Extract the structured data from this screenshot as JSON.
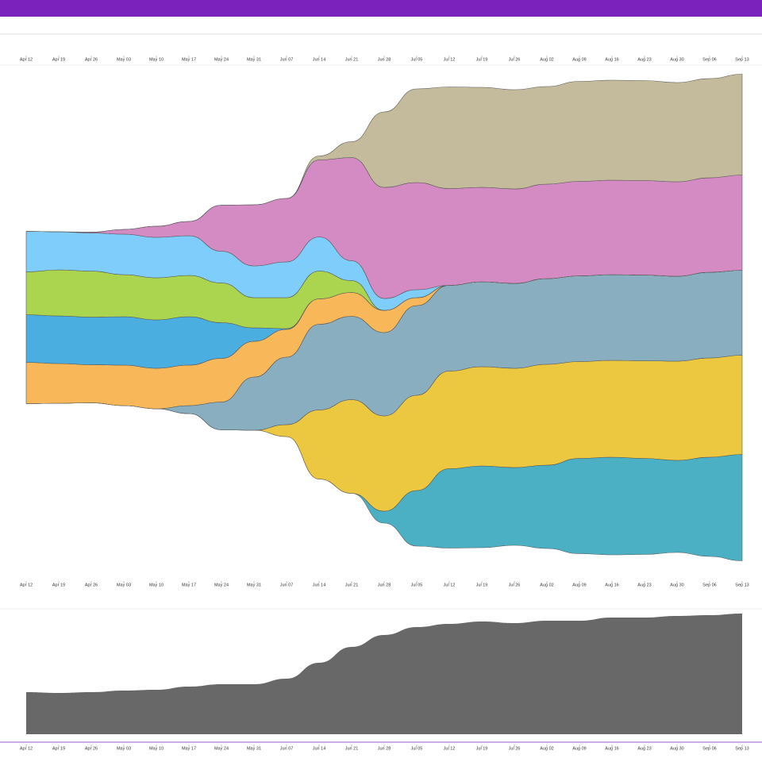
{
  "chart_data": [
    {
      "type": "stream",
      "categories": [
        "Apr 12",
        "Apr 19",
        "Apr 26",
        "May 03",
        "May 10",
        "May 17",
        "May 24",
        "May 31",
        "Jun 07",
        "Jun 14",
        "Jun 21",
        "Jun 28",
        "Jul 05",
        "Jul 12",
        "Jul 19",
        "Jul 26",
        "Aug 02",
        "Aug 09",
        "Aug 16",
        "Aug 23",
        "Aug 30",
        "Sep 06",
        "Sep 13"
      ],
      "series": [
        {
          "color": "#4bb0c4",
          "values": [
            0,
            0,
            0,
            0,
            0,
            0,
            0,
            0,
            0,
            0,
            0,
            15,
            70,
            100,
            103,
            98,
            105,
            120,
            123,
            121,
            116,
            125,
            134
          ]
        },
        {
          "color": "#ecc840",
          "values": [
            0,
            0,
            0,
            0,
            0,
            0,
            0,
            0,
            15,
            87,
            118,
            120,
            120,
            123,
            125,
            125,
            127,
            122,
            122,
            123,
            125,
            125,
            125
          ]
        },
        {
          "color": "#88aebf",
          "values": [
            0,
            0,
            0,
            0,
            0,
            10,
            35,
            67,
            85,
            108,
            105,
            105,
            113,
            108,
            107,
            107,
            108,
            108,
            108,
            108,
            107,
            108,
            107
          ]
        },
        {
          "color": "#f8b85a",
          "values": [
            52,
            50,
            48,
            51,
            51,
            51,
            55,
            45,
            35,
            32,
            30,
            28,
            10,
            0,
            0,
            0,
            0,
            0,
            0,
            0,
            0,
            0,
            0
          ]
        },
        {
          "color": "#4aaee0",
          "values": [
            60,
            60,
            60,
            61,
            61,
            61,
            45,
            17,
            1,
            0,
            0,
            0,
            0,
            0,
            0,
            0,
            0,
            0,
            0,
            0,
            0,
            0,
            0
          ]
        },
        {
          "color": "#acd54f",
          "values": [
            54,
            58,
            58,
            53,
            53,
            52,
            50,
            38,
            39,
            35,
            15,
            0,
            0,
            0,
            0,
            0,
            0,
            0,
            0,
            0,
            0,
            0,
            0
          ]
        },
        {
          "color": "#7fcdfb",
          "values": [
            51,
            48,
            48,
            51,
            51,
            50,
            40,
            40,
            45,
            43,
            25,
            15,
            10,
            0,
            0,
            0,
            0,
            0,
            0,
            0,
            0,
            0,
            0
          ]
        },
        {
          "color": "#d48bc3",
          "values": [
            0,
            0,
            1,
            6,
            14,
            18,
            58,
            77,
            80,
            97,
            130,
            140,
            135,
            122,
            119,
            119,
            119,
            119,
            119,
            119,
            119,
            119,
            120
          ]
        },
        {
          "color": "#c4bb9c",
          "values": [
            0,
            0,
            0,
            0,
            0,
            0,
            0,
            0,
            0,
            5,
            20,
            95,
            118,
            128,
            126,
            125,
            123,
            126,
            126,
            126,
            125,
            125,
            127
          ]
        }
      ]
    },
    {
      "type": "area",
      "categories": [
        "Apr 12",
        "Apr 19",
        "Apr 26",
        "May 03",
        "May 10",
        "May 17",
        "May 24",
        "May 31",
        "Jun 07",
        "Jun 14",
        "Jun 21",
        "Jun 28",
        "Jul 05",
        "Jul 12",
        "Jul 19",
        "Jul 26",
        "Aug 02",
        "Aug 09",
        "Aug 16",
        "Aug 23",
        "Aug 30",
        "Sep 06",
        "Sep 13"
      ],
      "color": "#686868",
      "values": [
        53,
        52,
        53,
        55,
        56,
        60,
        63,
        63,
        70,
        90,
        110,
        125,
        135,
        139,
        142,
        140,
        143,
        143,
        147,
        147,
        149,
        150,
        152
      ]
    }
  ]
}
